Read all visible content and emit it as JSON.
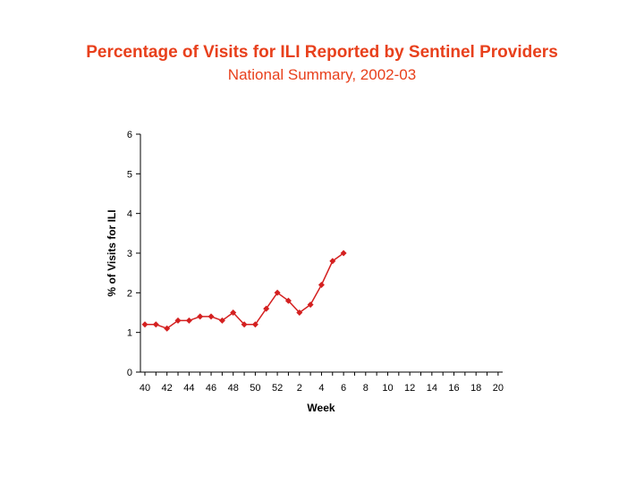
{
  "colors": {
    "accent": "#e8401c",
    "series": "#d42020",
    "axis": "#000000",
    "text": "#000000"
  },
  "chart_data": {
    "type": "line",
    "title": "Percentage of Visits for ILI Reported by Sentinel Providers",
    "subtitle": "National Summary, 2002-03",
    "xlabel": "Week",
    "ylabel": "% of Visits for ILI",
    "ylim": [
      0,
      6
    ],
    "yticks": [
      "0",
      "1",
      "2",
      "3",
      "4",
      "5",
      "6"
    ],
    "xticks": [
      "40",
      "42",
      "44",
      "46",
      "48",
      "50",
      "52",
      "2",
      "4",
      "6",
      "8",
      "10",
      "12",
      "14",
      "16",
      "18",
      "20"
    ],
    "weeks": [
      "40",
      "41",
      "42",
      "43",
      "44",
      "45",
      "46",
      "47",
      "48",
      "49",
      "50",
      "51",
      "52",
      "1",
      "2",
      "3",
      "4",
      "5",
      "6",
      "7",
      "8",
      "9",
      "10",
      "11",
      "12",
      "13",
      "14",
      "15",
      "16",
      "17",
      "18",
      "19",
      "20"
    ],
    "grid": false,
    "legend": "none",
    "series": [
      {
        "x": [
          "40",
          "41",
          "42",
          "43",
          "44",
          "45",
          "46",
          "47",
          "48",
          "49",
          "50",
          "51",
          "52",
          "1",
          "2",
          "3",
          "4",
          "5",
          "6"
        ],
        "values": [
          1.2,
          1.2,
          1.1,
          1.3,
          1.3,
          1.4,
          1.4,
          1.3,
          1.5,
          1.2,
          1.2,
          1.6,
          2.0,
          1.8,
          1.5,
          1.7,
          2.2,
          2.8,
          3.0
        ]
      }
    ]
  }
}
